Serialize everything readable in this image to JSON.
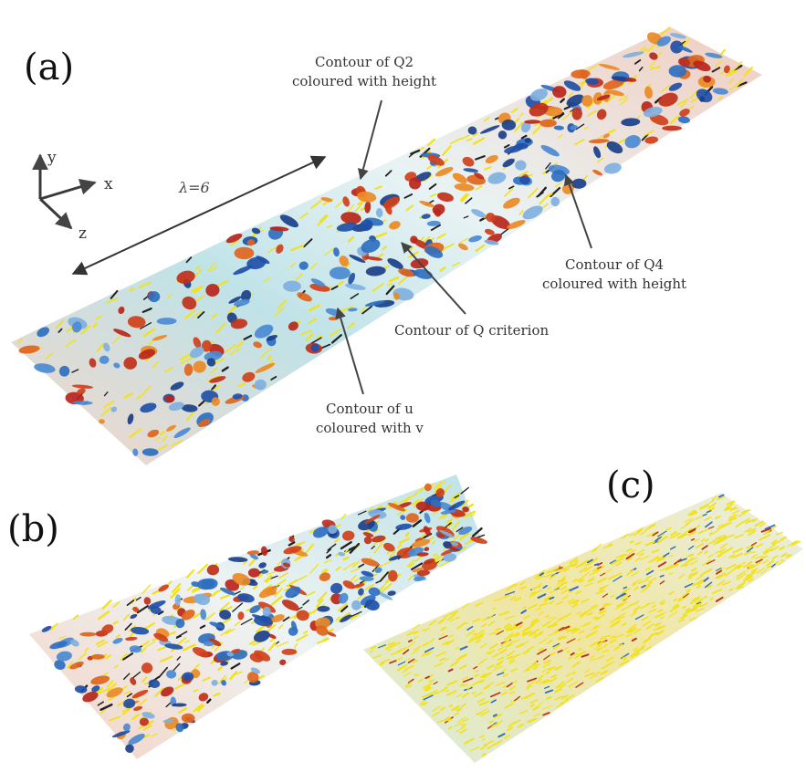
{
  "figure": {
    "panels": {
      "a": "(a)",
      "b": "(b)",
      "c": "(c)"
    },
    "axes": {
      "y": "y",
      "x": "x",
      "z": "z"
    },
    "wavelength_label": "λ=6",
    "annotations": {
      "q2": [
        "Contour of Q2",
        "coloured with height"
      ],
      "q4": [
        "Contour of Q4",
        "coloured with height"
      ],
      "q_criterion": "Contour of Q criterion",
      "u_field": [
        "Contour of u",
        "coloured with v"
      ]
    },
    "colors": {
      "q2_structures": "#2f6fc0",
      "q4_structures": "#d0401a",
      "q_criterion": "#f2e21c",
      "u_low": "#a9dde4",
      "u_high": "#f2c8b8"
    }
  }
}
